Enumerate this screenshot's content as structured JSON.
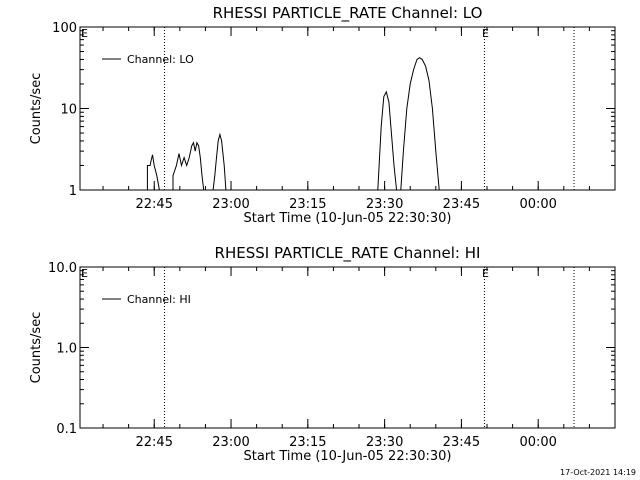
{
  "chart_data": [
    {
      "type": "line",
      "title": "RHESSI PARTICLE_RATE Channel: LO",
      "xlabel": "Start Time (10-Jun-05 22:30:30)",
      "ylabel": "Counts/sec",
      "yscale": "log",
      "ylim": [
        1,
        100
      ],
      "xlim": [
        "22:30:30",
        "00:15:00"
      ],
      "x_ticks": [
        "22:45",
        "23:00",
        "23:15",
        "23:30",
        "23:45",
        "00:00"
      ],
      "y_ticks": [
        "1",
        "10",
        "100"
      ],
      "legend": {
        "entries": [
          "Channel: LO"
        ],
        "position": "top-left"
      },
      "markers": [
        {
          "label": "",
          "x": "22:47:00"
        },
        {
          "label": "E",
          "x": "23:49:30"
        },
        {
          "label": "",
          "x": "00:07:00"
        }
      ],
      "edge_label": "E",
      "series": [
        {
          "name": "Channel: LO",
          "segments": [
            [
              [
                "22:43:40",
                1
              ],
              [
                "22:43:40",
                2.0
              ],
              [
                "22:44:10",
                2.0
              ],
              [
                "22:44:40",
                2.7
              ],
              [
                "22:45:00",
                2.0
              ],
              [
                "22:45:30",
                1.5
              ],
              [
                "22:46:00",
                1
              ]
            ],
            [
              [
                "22:48:40",
                1
              ],
              [
                "22:48:40",
                1.5
              ],
              [
                "22:49:20",
                2.0
              ],
              [
                "22:49:50",
                2.8
              ],
              [
                "22:50:20",
                2.0
              ],
              [
                "22:50:50",
                2.5
              ],
              [
                "22:51:20",
                2.0
              ],
              [
                "22:51:50",
                2.5
              ],
              [
                "22:52:20",
                3.5
              ],
              [
                "22:52:40",
                3.8
              ],
              [
                "22:53:00",
                3.0
              ],
              [
                "22:53:20",
                3.8
              ],
              [
                "22:53:40",
                3.5
              ],
              [
                "22:54:00",
                2.5
              ],
              [
                "22:54:20",
                1.5
              ],
              [
                "22:54:40",
                1
              ]
            ],
            [
              [
                "22:56:30",
                1
              ],
              [
                "22:56:50",
                1.5
              ],
              [
                "22:57:10",
                2.5
              ],
              [
                "22:57:30",
                4.0
              ],
              [
                "22:57:50",
                4.8
              ],
              [
                "22:58:10",
                4.0
              ],
              [
                "22:58:40",
                2.0
              ],
              [
                "22:59:00",
                1
              ]
            ],
            [
              [
                "23:28:40",
                1
              ],
              [
                "23:29:20",
                6.0
              ],
              [
                "23:29:50",
                14.0
              ],
              [
                "23:30:20",
                16.0
              ],
              [
                "23:30:50",
                12.0
              ],
              [
                "23:31:20",
                5.0
              ],
              [
                "23:31:50",
                2.0
              ],
              [
                "23:32:20",
                1
              ]
            ],
            [
              [
                "23:33:10",
                1
              ],
              [
                "23:33:40",
                3.0
              ],
              [
                "23:34:20",
                10.0
              ],
              [
                "23:35:00",
                20.0
              ],
              [
                "23:35:40",
                30.0
              ],
              [
                "23:36:20",
                40.0
              ],
              [
                "23:36:50",
                42.0
              ],
              [
                "23:37:20",
                40.0
              ],
              [
                "23:38:00",
                33.0
              ],
              [
                "23:38:40",
                22.0
              ],
              [
                "23:39:20",
                10.0
              ],
              [
                "23:40:00",
                3.0
              ],
              [
                "23:40:40",
                1
              ]
            ]
          ]
        }
      ]
    },
    {
      "type": "line",
      "title": "RHESSI PARTICLE_RATE Channel: HI",
      "xlabel": "Start Time (10-Jun-05 22:30:30)",
      "ylabel": "Counts/sec",
      "yscale": "log",
      "ylim": [
        0.1,
        10
      ],
      "xlim": [
        "22:30:30",
        "00:15:00"
      ],
      "x_ticks": [
        "22:45",
        "23:00",
        "23:15",
        "23:30",
        "23:45",
        "00:00"
      ],
      "y_ticks": [
        "0.1",
        "1.0",
        "10.0"
      ],
      "legend": {
        "entries": [
          "Channel: HI"
        ],
        "position": "top-left"
      },
      "markers": [
        {
          "label": "",
          "x": "22:47:00"
        },
        {
          "label": "E",
          "x": "23:49:30"
        },
        {
          "label": "",
          "x": "00:07:00"
        }
      ],
      "edge_label": "E",
      "series": [
        {
          "name": "Channel: HI",
          "segments": []
        }
      ]
    }
  ],
  "footer": {
    "timestamp": "17-Oct-2021 14:19"
  }
}
